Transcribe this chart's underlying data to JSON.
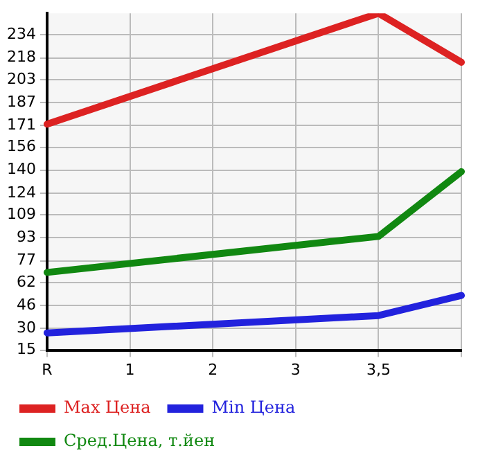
{
  "chart_data": {
    "type": "line",
    "categories": [
      "R",
      "1",
      "2",
      "3",
      "3,5",
      null
    ],
    "series": [
      {
        "name": "Max Цена",
        "color": "#dd2222",
        "values": [
          172,
          null,
          null,
          null,
          249,
          215
        ]
      },
      {
        "name": "Min Цена",
        "color": "#2222dd",
        "values": [
          27,
          null,
          null,
          null,
          39,
          53
        ]
      },
      {
        "name": "Сред.Цена, т.йен",
        "color": "#118811",
        "values": [
          69,
          null,
          null,
          null,
          94,
          139
        ]
      }
    ],
    "ylim": [
      15,
      249
    ],
    "yticks": [
      15,
      30,
      46,
      62,
      77,
      93,
      109,
      124,
      140,
      156,
      171,
      187,
      203,
      218,
      234
    ],
    "grid": true,
    "legend": "bottom",
    "marker": "none",
    "line_style": "solid"
  }
}
